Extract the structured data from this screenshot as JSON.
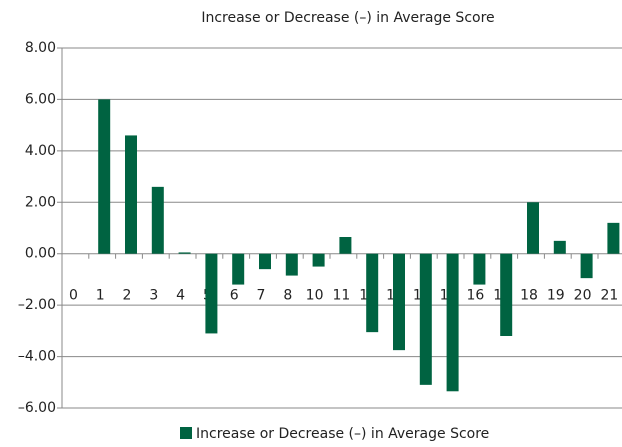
{
  "chart_data": {
    "type": "bar",
    "title": "Increase or Decrease (–) in Average Score",
    "categories": [
      "0",
      "1",
      "2",
      "3",
      "4",
      "5",
      "6",
      "7",
      "8",
      "10",
      "11",
      "12",
      "13",
      "14",
      "15",
      "16",
      "17",
      "18",
      "19",
      "20",
      "21"
    ],
    "series": [
      {
        "name": "Increase or Decrease (–) in Average Score",
        "color": "#006341",
        "values": [
          null,
          6.0,
          4.6,
          2.6,
          0.05,
          -3.1,
          -1.2,
          -0.6,
          -0.85,
          -0.5,
          0.65,
          -3.05,
          -3.75,
          -5.1,
          -5.35,
          -1.2,
          -3.2,
          2.0,
          0.5,
          -0.95,
          1.2
        ]
      }
    ],
    "ylim": [
      -6,
      8
    ],
    "yticks": [
      {
        "value": -6,
        "label": "–6.00"
      },
      {
        "value": -4,
        "label": "–4.00"
      },
      {
        "value": -2,
        "label": "–2.00"
      },
      {
        "value": 0,
        "label": "0.00"
      },
      {
        "value": 2,
        "label": "2.00"
      },
      {
        "value": 4,
        "label": "4.00"
      },
      {
        "value": 6,
        "label": "6.00"
      },
      {
        "value": 8,
        "label": "8.00"
      }
    ],
    "grid": true,
    "legend": "bottom"
  }
}
